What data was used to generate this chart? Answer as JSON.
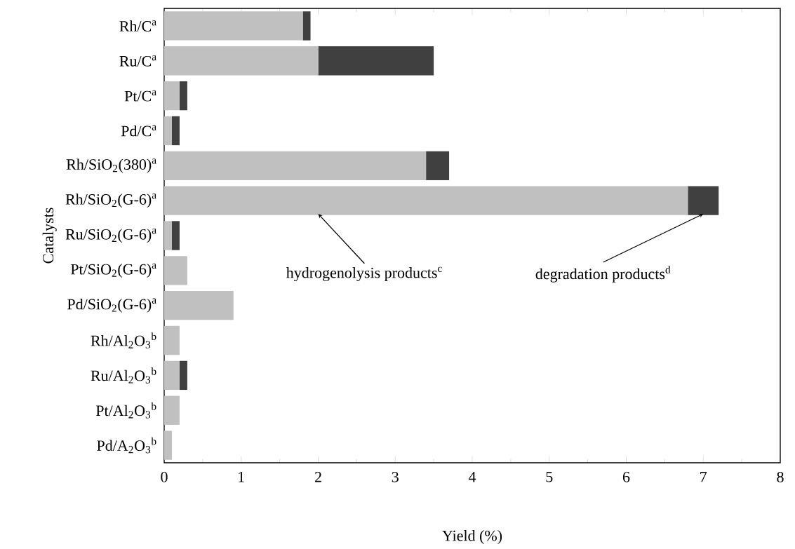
{
  "chart_data": {
    "type": "bar",
    "orientation": "horizontal",
    "stacked": true,
    "xlabel": "Yield (%)",
    "ylabel": "Catalysts",
    "categories": [
      "Rh/C$^{a}$",
      "Ru/C$^{a}$",
      "Pt/C$^{a}$",
      "Pd/C$^{a}$",
      "Rh/SiO$_{2}$(380)$^{a}$",
      "Rh/SiO$_{2}$(G-6)$^{a}$",
      "Ru/SiO$_{2}$(G-6)$^{a}$",
      "Pt/SiO$_{2}$(G-6)$^{a}$",
      "Pd/SiO$_{2}$(G-6)$^{a}$",
      "Rh/Al$_{2}$O$_{3}$$^{b}$",
      "Ru/Al$_{2}$O$_{3}$$^{b}$",
      "Pt/Al$_{2}$O$_{3}$$^{b}$",
      "Pd/A$_{2}$O$_{3}$$^{b}$"
    ],
    "series": [
      {
        "color": "#c0c0c0",
        "values": [
          1.8,
          2.0,
          0.2,
          0.1,
          3.4,
          6.8,
          0.1,
          0.3,
          0.9,
          0.2,
          0.2,
          0.2,
          0.1
        ]
      },
      {
        "color": "#404040",
        "values": [
          0.1,
          1.5,
          0.1,
          0.1,
          0.3,
          0.4,
          0.1,
          0,
          0,
          0,
          0.1,
          0,
          0
        ]
      }
    ],
    "xlim": [
      0,
      8
    ],
    "xticks": [
      0,
      1,
      2,
      3,
      4,
      5,
      6,
      7,
      8
    ],
    "annotations": [
      {
        "text": "hydrogenolysis products$^{c}$",
        "x": 2.0,
        "y": "Rh/SiO$_{2}$(G-6)$^{a}$"
      },
      {
        "text": "degradation products$^{d}$",
        "x": 7.0,
        "y": "Rh/SiO$_{2}$(G-6)$^{a}$"
      }
    ]
  }
}
